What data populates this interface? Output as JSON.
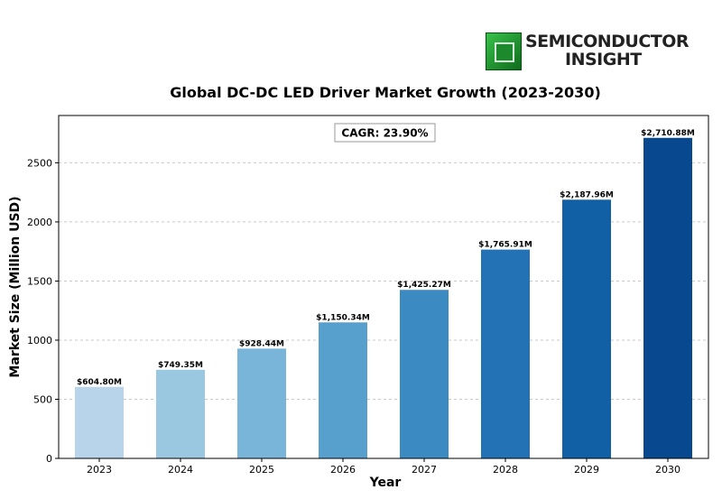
{
  "logo": {
    "line1": "SEMICONDUCTOR",
    "line2": "INSIGHT"
  },
  "annotation": {
    "cagr": "CAGR: 23.90%"
  },
  "chart_data": {
    "type": "bar",
    "title": "Global DC-DC LED Driver Market Growth (2023-2030)",
    "xlabel": "Year",
    "ylabel": "Market Size (Million USD)",
    "categories": [
      "2023",
      "2024",
      "2025",
      "2026",
      "2027",
      "2028",
      "2029",
      "2030"
    ],
    "values": [
      604.8,
      749.35,
      928.44,
      1150.34,
      1425.27,
      1765.91,
      2187.96,
      2710.88
    ],
    "data_labels": [
      "$604.80M",
      "$749.35M",
      "$928.44M",
      "$1,150.34M",
      "$1,425.27M",
      "$1,765.91M",
      "$2,187.96M",
      "$2,710.88M"
    ],
    "ylim": [
      0,
      2900
    ],
    "yticks": [
      0,
      500,
      1000,
      1500,
      2000,
      2500
    ],
    "grid": true,
    "colors": [
      "#b7d4ea",
      "#9ac8e1",
      "#79b5d9",
      "#57a0ce",
      "#3b8bc2",
      "#2372b5",
      "#1160a6",
      "#08488e"
    ]
  }
}
